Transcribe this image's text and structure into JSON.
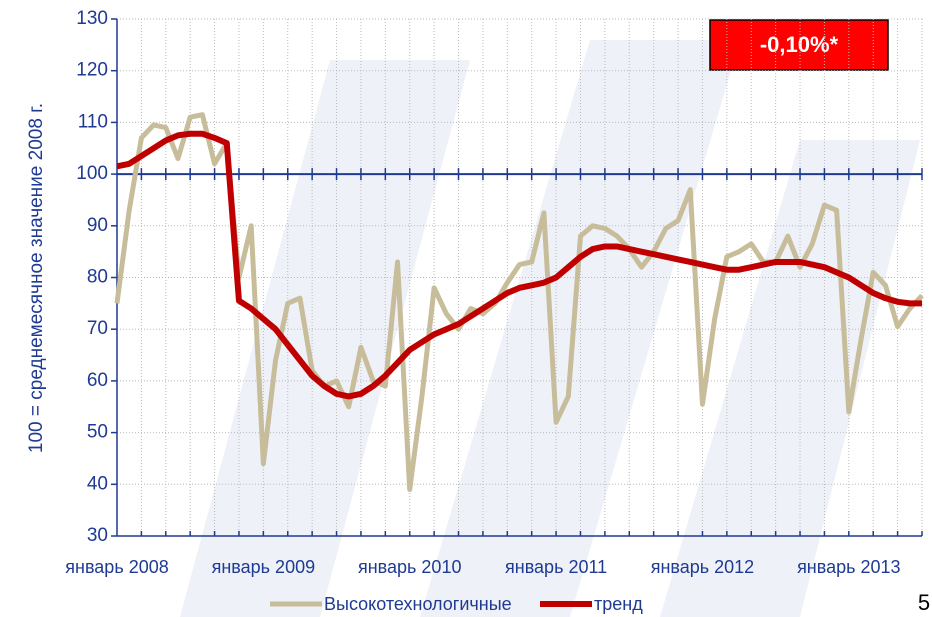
{
  "chart_data": {
    "type": "line",
    "y_label": "100 = среднемесячное значение 2008 г.",
    "annotation": "-0,10%*",
    "page_number": "5",
    "categories": [
      "январь 2008",
      null,
      null,
      null,
      null,
      null,
      null,
      null,
      null,
      null,
      null,
      null,
      "январь 2009",
      null,
      null,
      null,
      null,
      null,
      null,
      null,
      null,
      null,
      null,
      null,
      "январь 2010",
      null,
      null,
      null,
      null,
      null,
      null,
      null,
      null,
      null,
      null,
      null,
      "январь 2011",
      null,
      null,
      null,
      null,
      null,
      null,
      null,
      null,
      null,
      null,
      null,
      "январь 2012",
      null,
      null,
      null,
      null,
      null,
      null,
      null,
      null,
      null,
      null,
      null,
      "январь 2013",
      null,
      null,
      null,
      null,
      null,
      null
    ],
    "series": [
      {
        "name": "Высокотехнологичные",
        "color": "#c8bd9a",
        "values": [
          75,
          93,
          107,
          109.5,
          109,
          103,
          111,
          111.5,
          102,
          106,
          80,
          90,
          44,
          64,
          75,
          76,
          62,
          59,
          60,
          55,
          66.5,
          60,
          59,
          83,
          39,
          57,
          78,
          73,
          70,
          74,
          73,
          75,
          79,
          82.5,
          83,
          92.5,
          52,
          57,
          88,
          90,
          89.5,
          88,
          85.5,
          82,
          85,
          89.5,
          91,
          97,
          55.5,
          72,
          84,
          85,
          86.5,
          83,
          83,
          88,
          82,
          86.5,
          94,
          93,
          54,
          68,
          81,
          78.5,
          70.5,
          74,
          76.5
        ]
      },
      {
        "name": "тренд",
        "color": "#c00000",
        "values": [
          101.5,
          102,
          103.5,
          105,
          106.5,
          107.5,
          107.8,
          107.8,
          107,
          106,
          75.5,
          74,
          72,
          70,
          67,
          64,
          61,
          59,
          57.5,
          57,
          57.5,
          59,
          61,
          63.5,
          66,
          67.5,
          69,
          70,
          71,
          72.5,
          74,
          75.5,
          77,
          78,
          78.5,
          79,
          80,
          82,
          84,
          85.5,
          86,
          86,
          85.5,
          85,
          84.5,
          84,
          83.5,
          83,
          82.5,
          82,
          81.5,
          81.5,
          82,
          82.5,
          83,
          83,
          83,
          82.5,
          82,
          81,
          80,
          78.5,
          77,
          76,
          75.3,
          75,
          75
        ]
      }
    ],
    "ylim": [
      30,
      130
    ],
    "yticks": [
      30,
      40,
      50,
      60,
      70,
      80,
      90,
      100,
      110,
      120,
      130
    ],
    "reference_line": 100,
    "grid": true
  }
}
